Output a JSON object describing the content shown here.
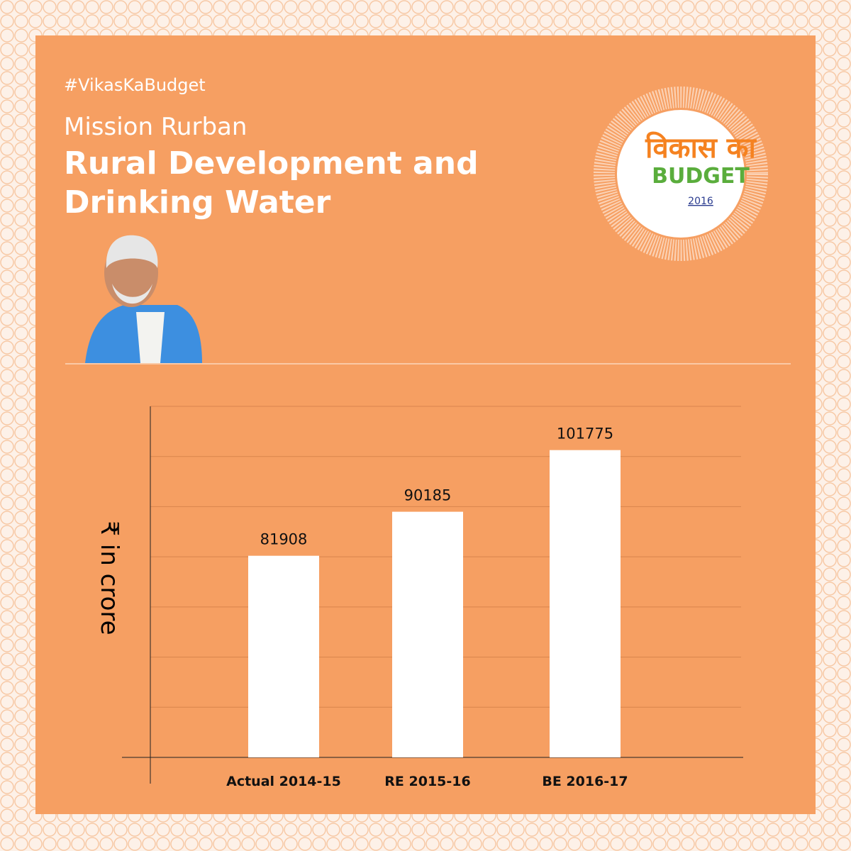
{
  "header": {
    "hashtag": "#VikasKaBudget",
    "subtitle": "Mission Rurban",
    "title_lines": [
      "Rural Development and",
      "Drinking Water"
    ]
  },
  "logo": {
    "hindi": "विकास का",
    "word": "BUDGET",
    "year": "2016"
  },
  "chart_data": {
    "type": "bar",
    "y_label": "₹ in crore",
    "categories": [
      "Actual 2014-15",
      "RE 2015-16",
      "BE 2016-17"
    ],
    "values": [
      81908,
      90185,
      101775
    ],
    "color": "#ffffff",
    "ylim": [
      44000,
      110000
    ],
    "grid": true
  }
}
